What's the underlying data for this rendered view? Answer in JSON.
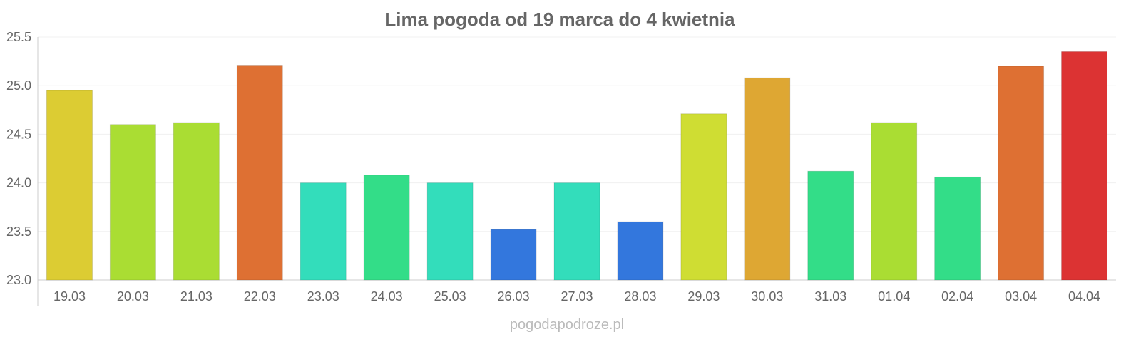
{
  "chart_data": {
    "type": "bar",
    "title": "Lima pogoda od 19 marca do 4 kwietnia",
    "xlabel": "",
    "ylabel": "",
    "ylim": [
      23.0,
      25.5
    ],
    "yticks": [
      "23.0",
      "23.5",
      "24.0",
      "24.5",
      "25.0",
      "25.5"
    ],
    "grid": true,
    "categories": [
      "19.03",
      "20.03",
      "21.03",
      "22.03",
      "23.03",
      "24.03",
      "25.03",
      "26.03",
      "27.03",
      "28.03",
      "29.03",
      "30.03",
      "31.03",
      "01.04",
      "02.04",
      "03.04",
      "04.04"
    ],
    "values": [
      24.95,
      24.6,
      24.62,
      25.21,
      24.0,
      24.08,
      24.0,
      23.52,
      24.0,
      23.6,
      24.71,
      25.08,
      24.12,
      24.62,
      24.06,
      25.2,
      25.35
    ],
    "colors": [
      "#dccc33",
      "#aadd33",
      "#aadd33",
      "#de7033",
      "#33ddbb",
      "#33dd88",
      "#33ddbb",
      "#3377dd",
      "#33ddbb",
      "#3377dd",
      "#cfdd33",
      "#dea733",
      "#33dd88",
      "#aadd33",
      "#33dd88",
      "#de7033",
      "#dc3333"
    ]
  },
  "credit": "pogodapodroze.pl"
}
